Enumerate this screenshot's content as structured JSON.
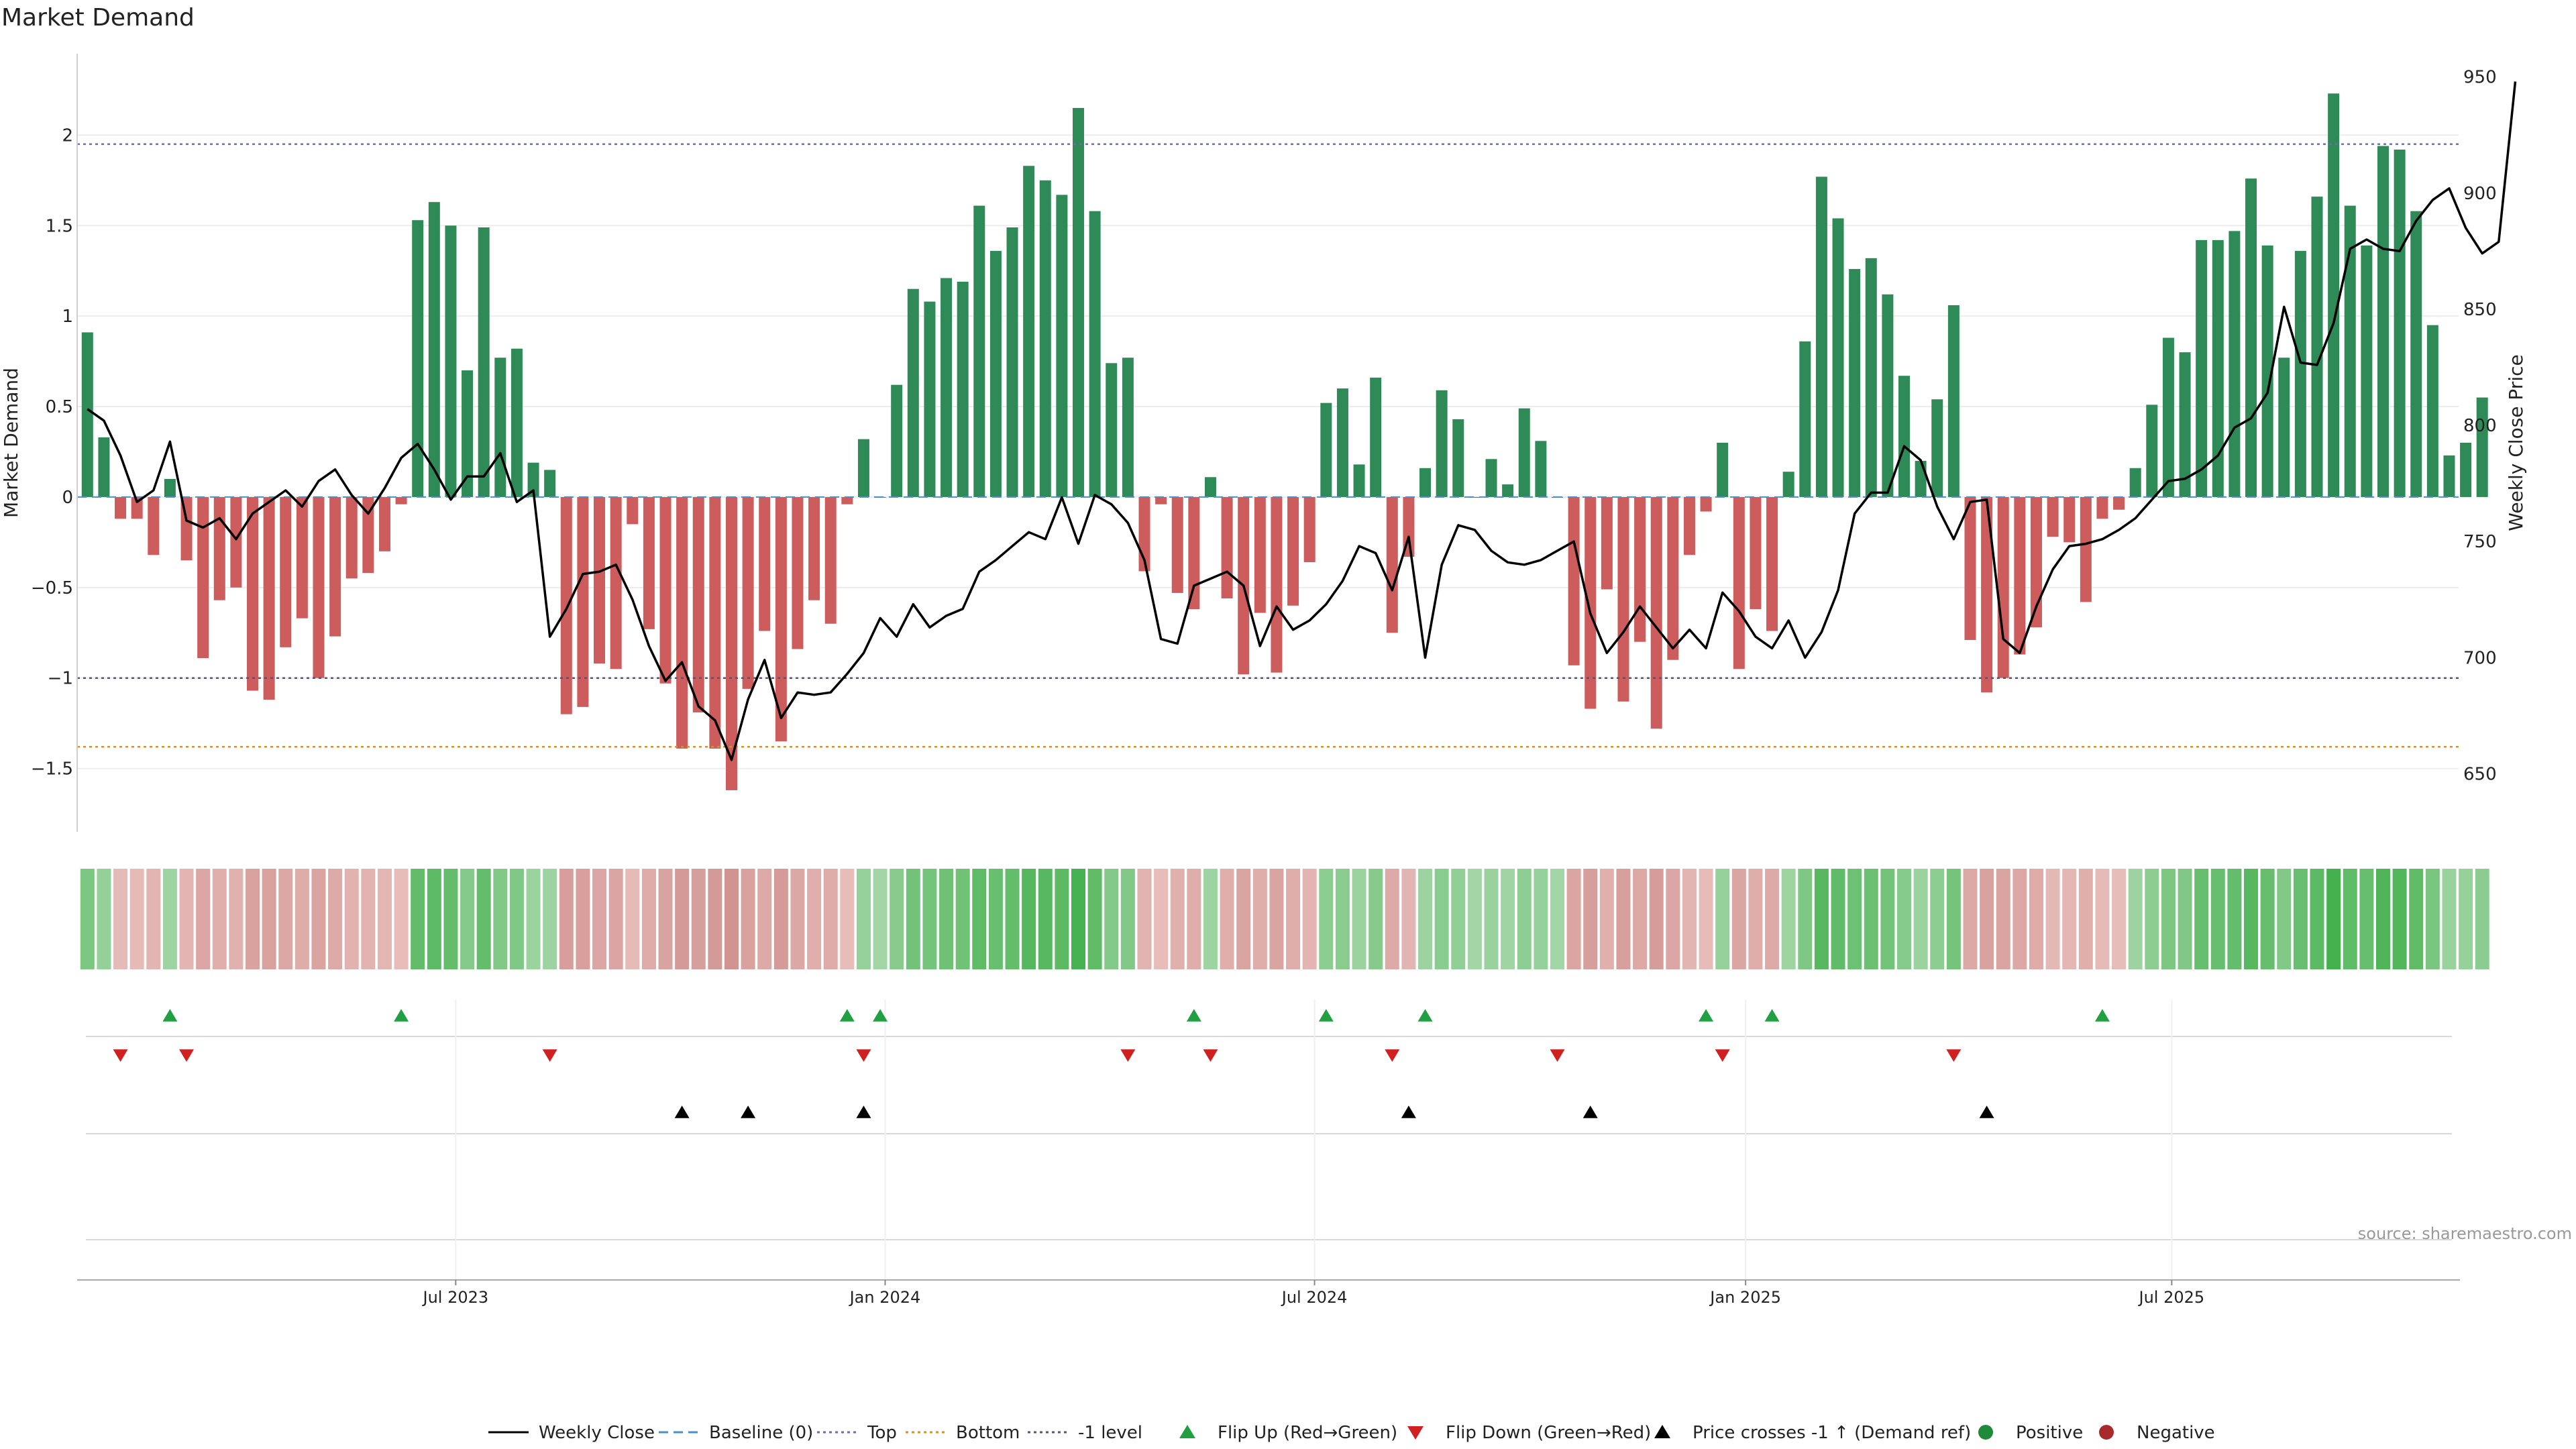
{
  "chart_data": {
    "type": "bar",
    "title": "Market Demand",
    "ylabel": "Market Demand",
    "y2label": "Weekly Close Price",
    "ylim": [
      -1.85,
      2.45
    ],
    "y2lim": [
      625,
      960
    ],
    "yticks": [
      -1.5,
      -1,
      -0.5,
      0,
      0.5,
      1,
      1.5,
      2
    ],
    "ytick_labels": [
      "−1.5",
      "−1",
      "−0.5",
      "0",
      "0.5",
      "1",
      "1.5",
      "2"
    ],
    "y2ticks": [
      650,
      700,
      750,
      800,
      850,
      900,
      950
    ],
    "xticks": [
      {
        "index": 22.3,
        "label": "Jul 2023"
      },
      {
        "index": 48.3,
        "label": "Jan 2024"
      },
      {
        "index": 74.3,
        "label": "Jul 2024"
      },
      {
        "index": 100.4,
        "label": "Jan 2025"
      },
      {
        "index": 126.2,
        "label": "Jul 2025"
      }
    ],
    "levels": {
      "top": 1.95,
      "bottom": -1.38,
      "minus_one": -1.0,
      "baseline": 0
    },
    "colors": {
      "positive": "#2e8b57",
      "negative": "#cd5c5c",
      "price": "#000000",
      "top": "#6b6bb0",
      "bottom": "#d4922a",
      "minus_one": "#555577",
      "flip_up": "#20a040",
      "flip_down": "#d02020",
      "cross": "#000000",
      "grid": "#ececec"
    },
    "demand": [
      0.91,
      0.33,
      -0.12,
      -0.12,
      -0.32,
      0.1,
      -0.35,
      -0.89,
      -0.57,
      -0.5,
      -1.07,
      -1.12,
      -0.83,
      -0.67,
      -1.0,
      -0.77,
      -0.45,
      -0.42,
      -0.3,
      -0.04,
      1.53,
      1.63,
      1.5,
      0.7,
      1.49,
      0.77,
      0.82,
      0.19,
      0.15,
      -1.2,
      -1.16,
      -0.92,
      -0.95,
      -0.15,
      -0.73,
      -1.03,
      -1.39,
      -1.19,
      -1.39,
      -1.62,
      -1.06,
      -0.74,
      -1.35,
      -0.84,
      -0.57,
      -0.7,
      -0.04,
      0.32,
      0.0,
      0.62,
      1.15,
      1.08,
      1.21,
      1.19,
      1.61,
      1.36,
      1.49,
      1.83,
      1.75,
      1.67,
      2.15,
      1.58,
      0.74,
      0.77,
      -0.41,
      -0.04,
      -0.53,
      -0.62,
      0.11,
      -0.56,
      -0.98,
      -0.64,
      -0.97,
      -0.6,
      -0.36,
      0.52,
      0.6,
      0.18,
      0.66,
      -0.75,
      -0.33,
      0.16,
      0.59,
      0.43,
      0.0,
      0.21,
      0.07,
      0.49,
      0.31,
      0.0,
      -0.93,
      -1.17,
      -0.51,
      -1.13,
      -0.8,
      -1.28,
      -0.9,
      -0.32,
      -0.08,
      0.3,
      -0.95,
      -0.62,
      -0.74,
      0.14,
      0.86,
      1.77,
      1.54,
      1.26,
      1.32,
      1.12,
      0.67,
      0.2,
      0.54,
      1.06,
      -0.79,
      -1.08,
      -1.0,
      -0.87,
      -0.72,
      -0.22,
      -0.25,
      -0.58,
      -0.12,
      -0.07,
      0.16,
      0.51,
      0.88,
      0.8,
      1.42,
      1.42,
      1.47,
      1.76,
      1.39,
      0.77,
      1.36,
      1.66,
      2.23,
      1.61,
      1.39,
      1.94,
      1.92,
      1.58,
      0.95,
      0.23,
      0.3,
      0.55
    ],
    "price": [
      807,
      802,
      787,
      767,
      772,
      793,
      759,
      756,
      760,
      751,
      762,
      767,
      772,
      765,
      776,
      781,
      770,
      762,
      773,
      786,
      792,
      781,
      768,
      778,
      778,
      788,
      767,
      772,
      709,
      721,
      736,
      737,
      740,
      725,
      705,
      690,
      698,
      679,
      673,
      656,
      682,
      699,
      674,
      685,
      684,
      685,
      693,
      702,
      717,
      709,
      723,
      713,
      718,
      721,
      737,
      742,
      748,
      754,
      751,
      769,
      749,
      770,
      766,
      758,
      742,
      708,
      706,
      731,
      734,
      737,
      731,
      705,
      722,
      712,
      716,
      723,
      733,
      748,
      745,
      729,
      752,
      700,
      740,
      757,
      755,
      746,
      741,
      740,
      742,
      746,
      750,
      719,
      702,
      711,
      722,
      713,
      704,
      712,
      704,
      728,
      720,
      709,
      704,
      716,
      700,
      711,
      729,
      762,
      771,
      771,
      791,
      785,
      765,
      751,
      767,
      768,
      708,
      702,
      722,
      738,
      748,
      749,
      751,
      755,
      760,
      768,
      776,
      777,
      781,
      787,
      799,
      803,
      814,
      851,
      827,
      826,
      844,
      876,
      880,
      876,
      875,
      888,
      897,
      902,
      885,
      874,
      879,
      948
    ],
    "heat_labels": [],
    "flip_up": [
      5,
      19,
      46,
      48,
      67,
      75,
      81,
      98,
      102,
      122
    ],
    "flip_down": [
      2,
      6,
      28,
      47,
      63,
      68,
      79,
      89,
      99,
      113
    ],
    "cross_up": [
      36,
      40,
      47,
      80,
      91,
      115
    ]
  },
  "legend": [
    {
      "label": "Weekly Close",
      "style": "line"
    },
    {
      "label": "Baseline (0)",
      "style": "dash-blue"
    },
    {
      "label": "Top",
      "style": "dot-purple"
    },
    {
      "label": "Bottom",
      "style": "dot-orange"
    },
    {
      "label": "-1 level",
      "style": "dot-grey"
    },
    {
      "label": "Flip Up (Red→Green)",
      "style": "tri-up-green"
    },
    {
      "label": "Flip Down (Green→Red)",
      "style": "tri-down-red"
    },
    {
      "label": "Price crosses -1 ↑ (Demand ref)",
      "style": "tri-up-black"
    },
    {
      "label": "Positive",
      "style": "dot-green"
    },
    {
      "label": "Negative",
      "style": "dot-red"
    }
  ],
  "source": "source: sharemaestro.com"
}
